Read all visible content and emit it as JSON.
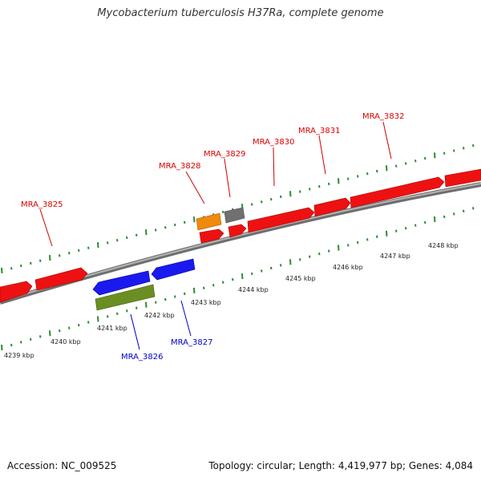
{
  "title": "Mycobacterium tuberculosis H37Ra, complete genome",
  "footer": {
    "accession": "Accession: NC_009525",
    "summary": "Topology: circular; Length: 4,419,977 bp; Genes: 4,084"
  },
  "colors": {
    "forward_gene": "#ee1111",
    "reverse_gene": "#1a1aee",
    "orange_feature": "#ee8a0c",
    "gray_feature": "#707070",
    "olive_feature": "#6b8e23",
    "tick": "#2e8b2e",
    "backbone": "#8a8a8a",
    "forward_label": "#dd0000",
    "reverse_label": "#0000cc"
  },
  "kbp_labels": [
    "4239 kbp",
    "4240 kbp",
    "4241 kbp",
    "4242 kbp",
    "4243 kbp",
    "4244 kbp",
    "4245 kbp",
    "4246 kbp",
    "4247 kbp",
    "4248 kbp"
  ],
  "gene_labels": {
    "forward": [
      "MRA_3825",
      "MRA_3828",
      "MRA_3829",
      "MRA_3830",
      "MRA_3831",
      "MRA_3832"
    ],
    "reverse": [
      "MRA_3826",
      "MRA_3827"
    ]
  }
}
